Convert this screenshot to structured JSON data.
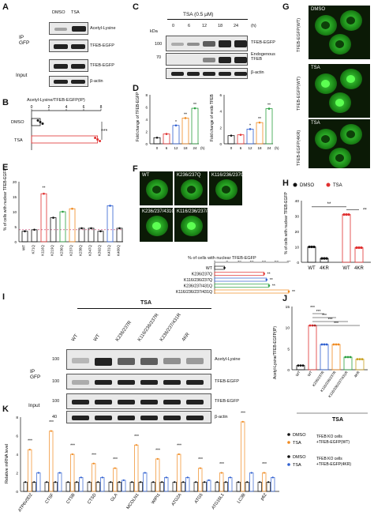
{
  "panels": {
    "A": {
      "letter": "A",
      "lanes": [
        "DMSO",
        "TSA"
      ],
      "rows": [
        "Acetyl-Lysine",
        "TFEB-EGFP",
        "TFEB-EGFP",
        "β-actin"
      ],
      "group_ip": "IP\nGFP",
      "group_input": "Input"
    },
    "B": {
      "letter": "B",
      "title": "Acetyl-Lysine/TFEB-EGFP(IP)",
      "ticks": [
        "0",
        "2",
        "4",
        "6",
        "8"
      ],
      "rows": [
        "DMSO",
        "TSA"
      ],
      "sig": "***"
    },
    "C": {
      "letter": "C",
      "title": "TSA (0.5 μM)",
      "lanes": [
        "0",
        "6",
        "12",
        "18",
        "24"
      ],
      "unit": "(h)",
      "kda": "kDa",
      "mw": [
        "100",
        "70"
      ],
      "rows": [
        "TFEB-EGFP",
        "Endogenous\nTFEB",
        "β-actin"
      ]
    },
    "D": {
      "letter": "D",
      "ylabel1": "Fold change of TFEB-EGFP",
      "ylabel2": "Fold change of endo TFEB",
      "xunit": "(h)",
      "ticks_x": [
        "0",
        "6",
        "12",
        "18",
        "24"
      ]
    },
    "E": {
      "letter": "E",
      "ylabel": "% of cells with nuclear TFEB-EGFP",
      "categories": [
        "WT",
        "K71Q",
        "K116Q",
        "K219Q",
        "K236Q",
        "K237Q",
        "K238Q",
        "K347Q",
        "K392Q",
        "K431Q",
        "K460Q"
      ],
      "sig": "**"
    },
    "F": {
      "letter": "F",
      "images": [
        "WT",
        "K236/237Q",
        "K116/236/237Q",
        "K236/237/431Q",
        "K116/236/237/431Q"
      ],
      "bar_title": "% of cells with nuclear TFEB-EGFP",
      "rows": [
        "WT",
        "K236/237Q",
        "K116/236/237Q",
        "K236/237/431Q",
        "K116/236/237/431Q"
      ],
      "ticks": [
        "0",
        "5",
        "10",
        "15",
        "20",
        "25",
        "30"
      ]
    },
    "G": {
      "letter": "G",
      "images": [
        "DMSO",
        "TSA",
        "TSA"
      ],
      "side": [
        "TFEB-EGFP(WT)",
        "TFEB-EGFP(WT)",
        "TFEB-EGFP(4KR)"
      ]
    },
    "H": {
      "letter": "H",
      "legend": [
        "DMSO",
        "TSA"
      ],
      "ylabel": "% of cells with nuclear TFEB-EGFP",
      "categories": [
        "WT",
        "4KR",
        "WT",
        "4KR"
      ],
      "sig": [
        "**",
        "**"
      ]
    },
    "I": {
      "letter": "I",
      "group": "TSA",
      "lanes": [
        "WT",
        "WT",
        "K236/237R",
        "K116/236/237R",
        "K236/237/431R",
        "4KR"
      ],
      "mw": [
        "100",
        "100",
        "100",
        "40"
      ],
      "rows": [
        "Acetyl-Lysine",
        "TFEB-EGFP",
        "TFEB-EGFP",
        "β-actin"
      ],
      "group_ip": "IP\nGFP",
      "group_input": "Input"
    },
    "J": {
      "letter": "J",
      "ylabel": "Acetyl-Lysine/TFEB-EGFP(IP)",
      "categories": [
        "WT",
        "WT",
        "K236/237R",
        "K116/236/237R",
        "K116/236/237/431R",
        "4KR"
      ],
      "group": "TSA",
      "sig": [
        "***",
        "***",
        "***",
        "***",
        "***"
      ]
    },
    "K": {
      "letter": "K",
      "ylabel": "Relative mRNA level",
      "genes": [
        "ATP6V0D2",
        "CTSF",
        "CTSB",
        "CTSD",
        "GLA",
        "MCOLN1",
        "WIPI1",
        "ATG2A",
        "ATG5",
        "ATG16L1",
        "LC3B",
        "p62"
      ],
      "legend": [
        {
          "label": "DMSO"
        },
        {
          "label": "TSA"
        },
        {
          "label": "DMSO"
        },
        {
          "label": "TSA"
        }
      ],
      "legend_group1": "TFEB KO cells\n+TFEB-EGFP(WT)",
      "legend_group2": "TFEB KO cells\n+TFEB-EGFP(4KR)"
    }
  },
  "chart_data": [
    {
      "type": "bar",
      "title": "Acetyl-Lysine/TFEB-EGFP(IP)",
      "categories": [
        "DMSO",
        "TSA"
      ],
      "values": [
        1,
        7.6
      ],
      "xlim": [
        0,
        8
      ]
    },
    {
      "type": "bar",
      "categories": [
        "WT",
        "K71Q",
        "K116Q",
        "K219Q",
        "K236Q",
        "K237Q",
        "K238Q",
        "K347Q",
        "K392Q",
        "K431Q",
        "K460Q"
      ],
      "values": [
        3.5,
        4,
        16,
        8,
        10,
        11,
        4.5,
        4.5,
        3.5,
        12,
        4.5
      ],
      "ylim": [
        0,
        20
      ]
    },
    {
      "type": "bar",
      "title": "% of cells with nuclear TFEB-EGFP",
      "categories": [
        "WT",
        "K236/237Q",
        "K116/236/237Q",
        "K236/237/431Q",
        "K116/236/237/431Q"
      ],
      "values": [
        4,
        20,
        21,
        22,
        30
      ],
      "xlim": [
        0,
        30
      ]
    },
    {
      "type": "bar",
      "ylabel": "% of cells with nuclear TFEB-EGFP",
      "categories": [
        "WT",
        "4KR",
        "WT",
        "4KR"
      ],
      "series": [
        {
          "name": "DMSO",
          "values": [
            10,
            2.5,
            null,
            null
          ]
        },
        {
          "name": "TSA",
          "values": [
            null,
            null,
            31,
            9.5
          ]
        }
      ],
      "ylim": [
        0,
        40
      ],
      "yticks": [
        0,
        10,
        20,
        30,
        40
      ]
    },
    {
      "type": "bar",
      "ylabel": "Acetyl-Lysine/TFEB-EGFP(IP)",
      "categories": [
        "WT",
        "WT",
        "K236/237R",
        "K116/236/237R",
        "K116/236/237/431R",
        "4KR"
      ],
      "values": [
        1,
        10.5,
        6,
        6,
        3,
        2.5
      ],
      "ylim": [
        0,
        15
      ],
      "yticks": [
        0,
        5,
        10,
        15
      ]
    },
    {
      "type": "bar",
      "ylabel": "Relative mRNA level",
      "categories": [
        "ATP6V0D2",
        "CTSF",
        "CTSB",
        "CTSD",
        "GLA",
        "MCOLN1",
        "WIPI1",
        "ATG2A",
        "ATG5",
        "ATG16L1",
        "LC3B",
        "p62"
      ],
      "series": [
        {
          "name": "DMSO",
          "values": [
            1,
            1,
            1,
            1,
            1,
            1,
            1,
            1,
            1,
            1,
            1,
            1
          ]
        },
        {
          "name": "TSA",
          "values": [
            4.5,
            6.5,
            4,
            3,
            2.5,
            5,
            3.5,
            4,
            2.5,
            2,
            7.5,
            2
          ]
        },
        {
          "name": "DMSO",
          "values": [
            1,
            1,
            1,
            1,
            1,
            1,
            1,
            1,
            1,
            1,
            1,
            1
          ]
        },
        {
          "name": "TSA",
          "values": [
            2,
            2,
            1.5,
            1.5,
            1.2,
            2,
            1.5,
            1.5,
            1.2,
            1.5,
            2,
            1.5
          ]
        }
      ],
      "ylim": [
        0,
        8
      ],
      "yticks": [
        0,
        2,
        4,
        6,
        8
      ]
    }
  ]
}
